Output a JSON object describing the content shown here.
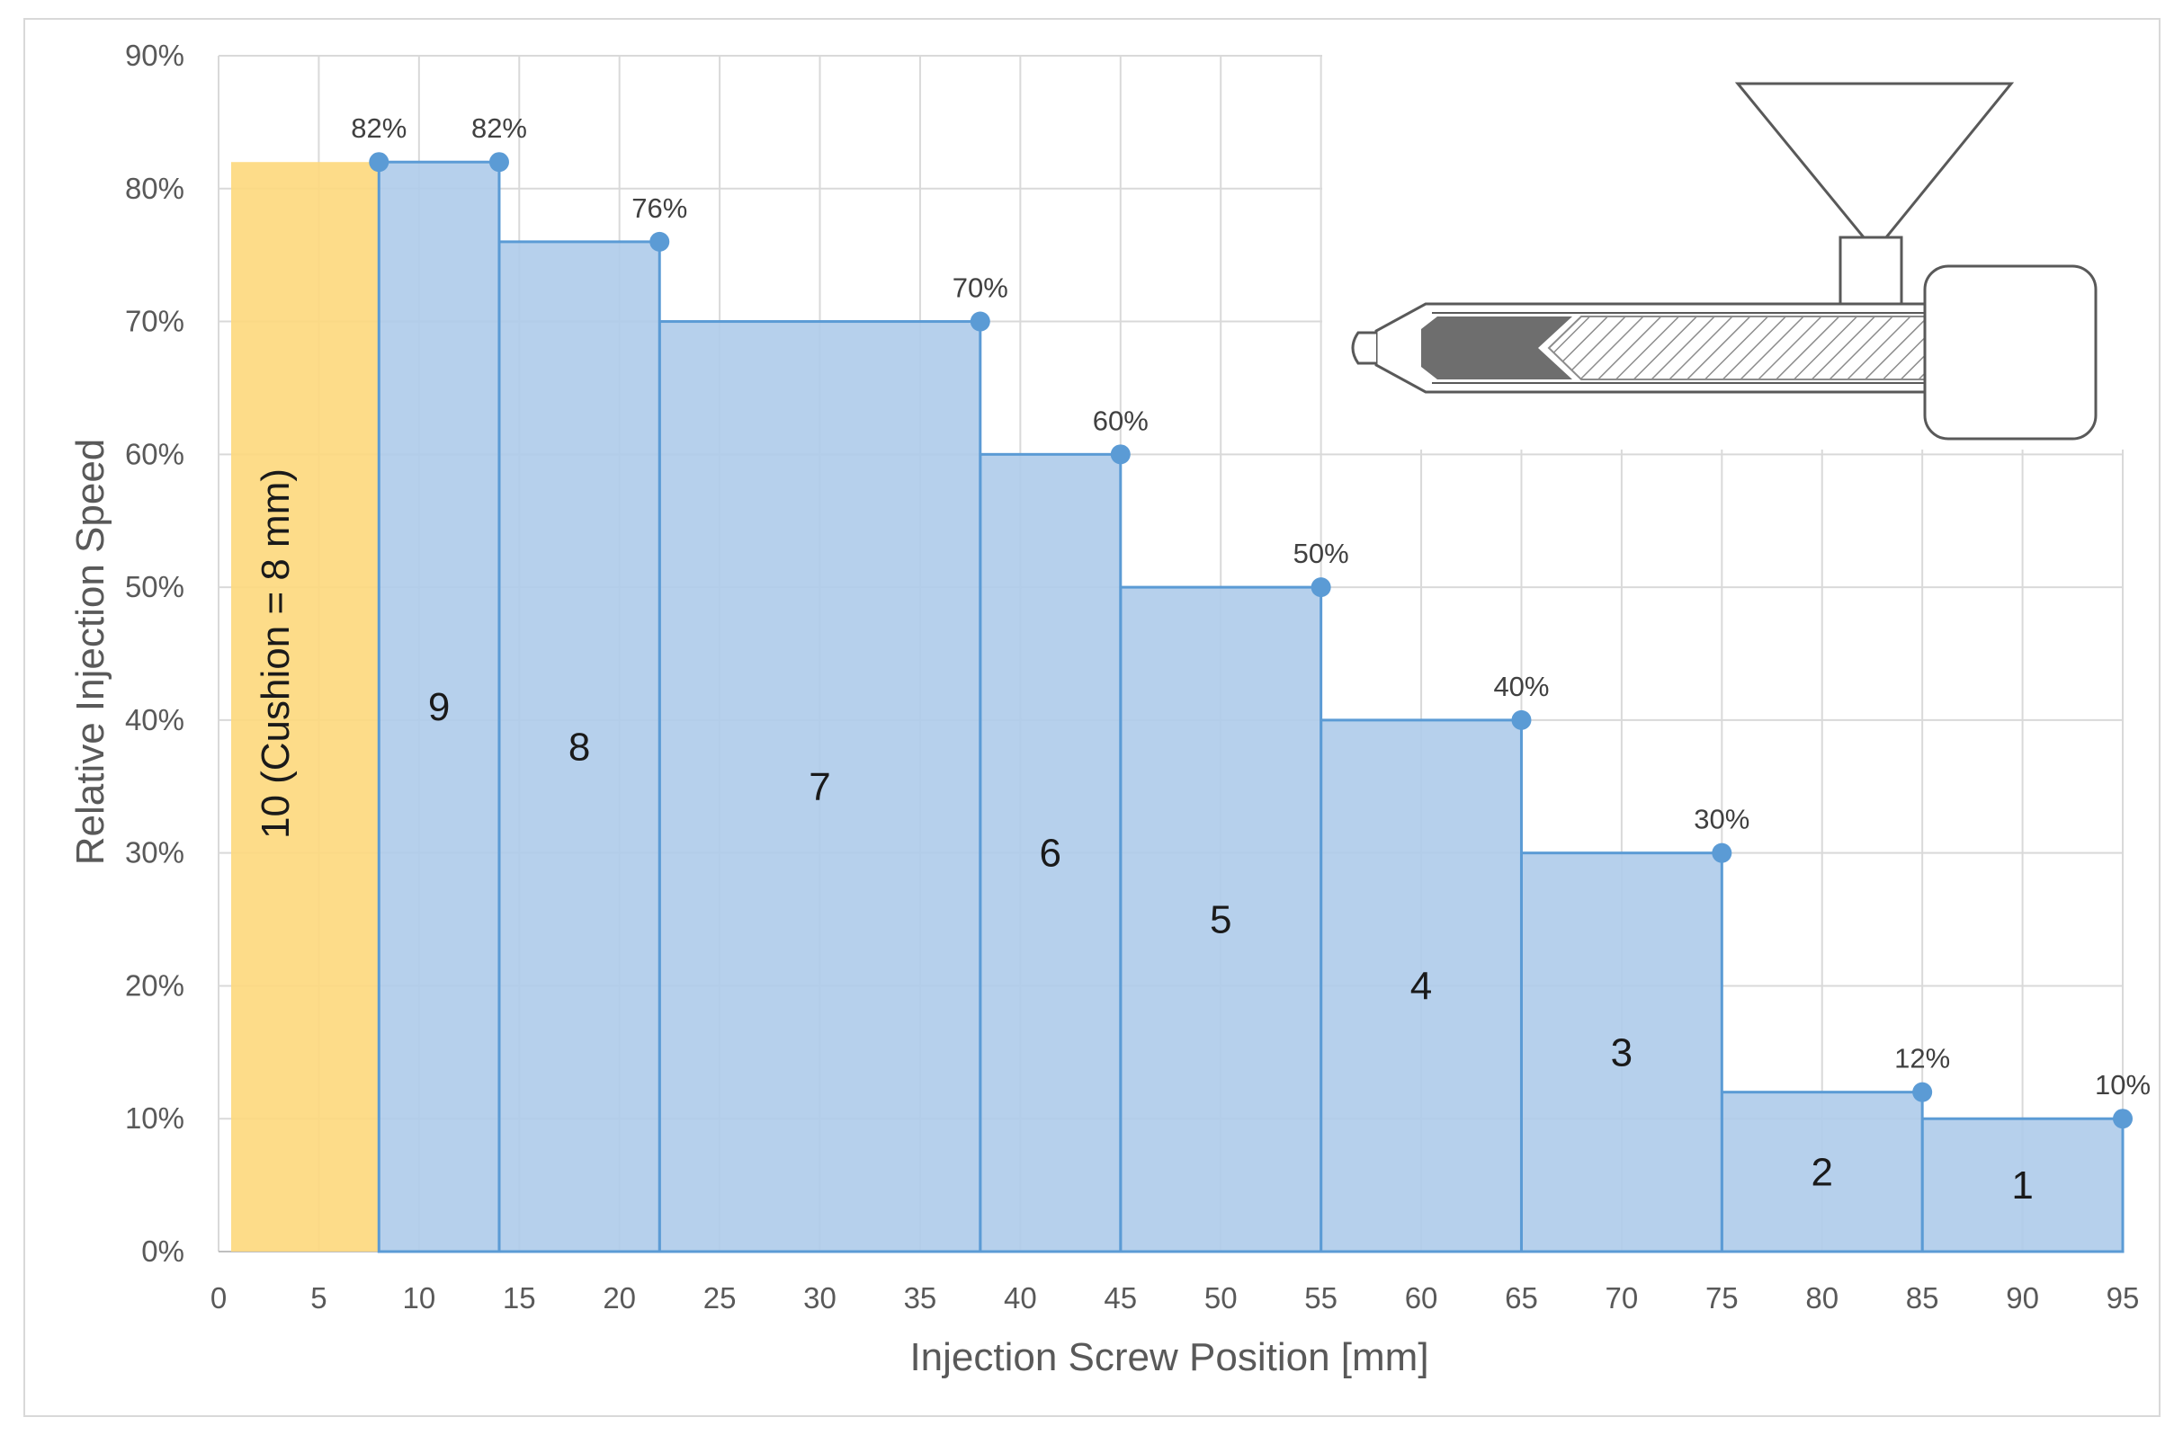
{
  "chart_data": {
    "type": "bar",
    "xlabel": "Injection Screw Position [mm]",
    "ylabel": "Relative Injection Speed",
    "xlim": [
      0,
      95
    ],
    "ylim": [
      0,
      90
    ],
    "x_ticks": [
      "0",
      "5",
      "10",
      "15",
      "20",
      "25",
      "30",
      "35",
      "40",
      "45",
      "50",
      "55",
      "60",
      "65",
      "70",
      "75",
      "80",
      "85",
      "90",
      "95"
    ],
    "y_ticks": [
      "0%",
      "10%",
      "20%",
      "30%",
      "40%",
      "50%",
      "60%",
      "70%",
      "80%",
      "90%"
    ],
    "grid": true,
    "zones": [
      {
        "label": "1",
        "x_start": 85,
        "x_end": 95,
        "value": 10
      },
      {
        "label": "2",
        "x_start": 75,
        "x_end": 85,
        "value": 12
      },
      {
        "label": "3",
        "x_start": 65,
        "x_end": 75,
        "value": 30
      },
      {
        "label": "4",
        "x_start": 55,
        "x_end": 65,
        "value": 40
      },
      {
        "label": "5",
        "x_start": 45,
        "x_end": 55,
        "value": 50
      },
      {
        "label": "6",
        "x_start": 38,
        "x_end": 45,
        "value": 60
      },
      {
        "label": "7",
        "x_start": 22,
        "x_end": 38,
        "value": 70
      },
      {
        "label": "8",
        "x_start": 14,
        "x_end": 22,
        "value": 76
      },
      {
        "label": "9",
        "x_start": 8,
        "x_end": 14,
        "value": 82
      }
    ],
    "cushion": {
      "label": "10  (Cushion = 8 mm)",
      "x_start": 0,
      "x_end": 8,
      "value": 82
    },
    "points": [
      {
        "x": 8,
        "y": 82,
        "label": "82%"
      },
      {
        "x": 14,
        "y": 82,
        "label": "82%"
      },
      {
        "x": 22,
        "y": 76,
        "label": "76%"
      },
      {
        "x": 38,
        "y": 70,
        "label": "70%"
      },
      {
        "x": 45,
        "y": 60,
        "label": "60%"
      },
      {
        "x": 55,
        "y": 50,
        "label": "50%"
      },
      {
        "x": 65,
        "y": 40,
        "label": "40%"
      },
      {
        "x": 75,
        "y": 30,
        "label": "30%"
      },
      {
        "x": 85,
        "y": 12,
        "label": "12%"
      },
      {
        "x": 95,
        "y": 10,
        "label": "10%"
      }
    ],
    "colors": {
      "zone_fill": "#aecbea",
      "zone_stroke": "#5b9bd5",
      "cushion_fill": "#fdd87c",
      "point": "#5b9bd5",
      "grid": "#d9d9d9"
    }
  },
  "illustration": {
    "name": "injection-unit-icon"
  }
}
